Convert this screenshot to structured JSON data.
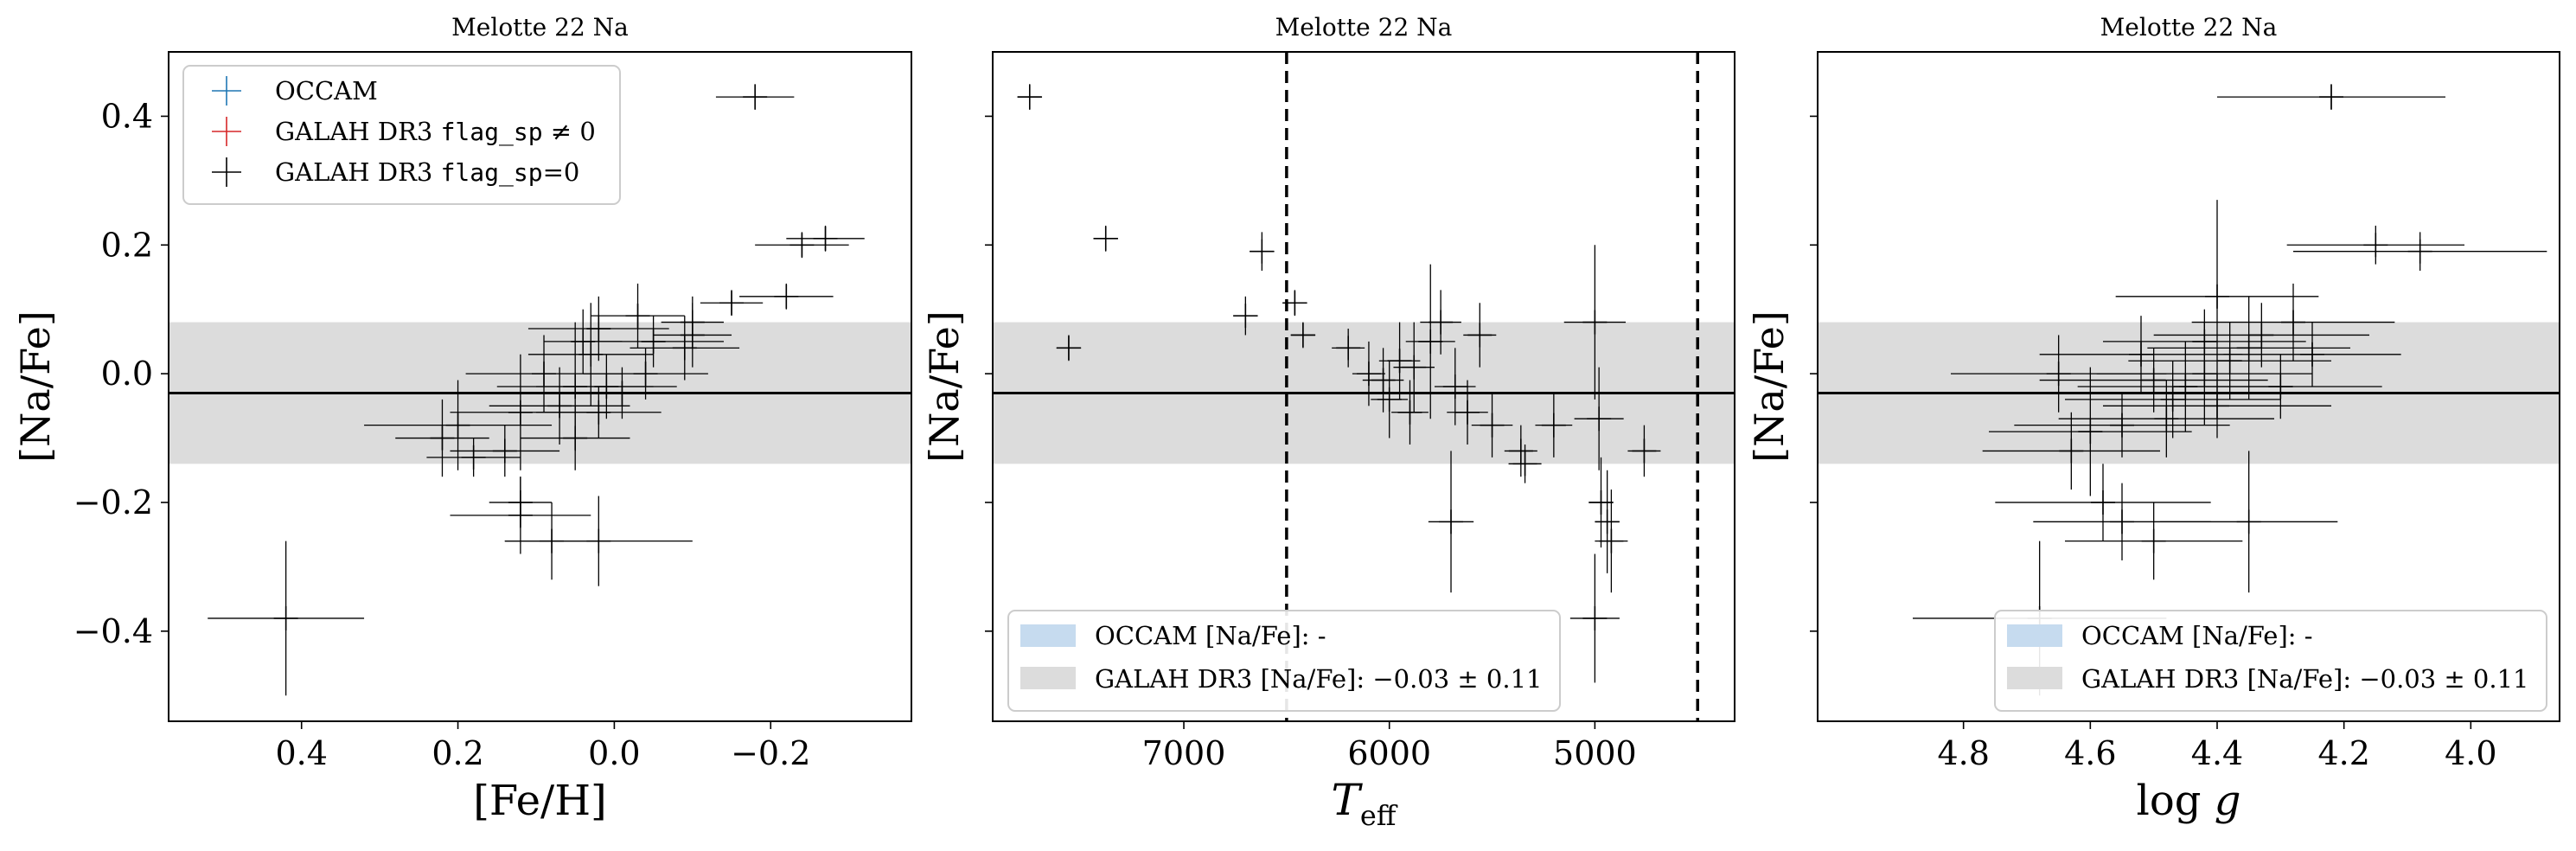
{
  "colors": {
    "occam": "#1f77b4",
    "galah_flagged": "#d62728",
    "galah_good": "#000000",
    "band_occam": "#c6dbef",
    "band_galah": "#dcdcdc"
  },
  "legend_top": {
    "items": [
      {
        "label": "OCCAM",
        "flag": "",
        "suffix": "",
        "color_key": "occam"
      },
      {
        "label": "GALAH DR3 ",
        "flag": "flag_sp",
        "suffix": " ≠ 0",
        "color_key": "galah_flagged"
      },
      {
        "label": "GALAH DR3 ",
        "flag": "flag_sp",
        "suffix": "=0",
        "color_key": "galah_good"
      }
    ]
  },
  "legend_bands": {
    "occam": "OCCAM [Na/Fe]: -",
    "galah": "GALAH DR3 [Na/Fe]: −0.03 ± 0.11"
  },
  "chart_data": [
    {
      "type": "scatter",
      "title": "Melotte 22 Na",
      "xlabel": "[Fe/H]",
      "ylabel": "[Na/Fe]",
      "xlim": [
        0.57,
        -0.38
      ],
      "ylim": [
        -0.54,
        0.5
      ],
      "xticks": [
        0.4,
        0.2,
        0.0,
        -0.2
      ],
      "xtick_labels": [
        "0.4",
        "0.2",
        "0.0",
        "−0.2"
      ],
      "yticks": [
        -0.4,
        -0.2,
        0.0,
        0.2,
        0.4
      ],
      "ytick_labels": [
        "−0.4",
        "−0.2",
        "0.0",
        "0.2",
        "0.4"
      ],
      "band": [
        -0.14,
        0.08
      ],
      "hline": -0.03,
      "legend": "top-left",
      "points": [
        {
          "x": 0.42,
          "y": -0.38,
          "xerr": 0.1,
          "yerr": 0.12
        },
        {
          "x": -0.18,
          "y": 0.43,
          "xerr": 0.05,
          "yerr": 0.02
        },
        {
          "x": -0.24,
          "y": 0.2,
          "xerr": 0.06,
          "yerr": 0.02
        },
        {
          "x": -0.27,
          "y": 0.21,
          "xerr": 0.05,
          "yerr": 0.02
        },
        {
          "x": -0.22,
          "y": 0.12,
          "xerr": 0.06,
          "yerr": 0.02
        },
        {
          "x": -0.15,
          "y": 0.11,
          "xerr": 0.04,
          "yerr": 0.02
        },
        {
          "x": -0.1,
          "y": 0.06,
          "xerr": 0.05,
          "yerr": 0.05
        },
        {
          "x": -0.09,
          "y": 0.04,
          "xerr": 0.07,
          "yerr": 0.05
        },
        {
          "x": -0.1,
          "y": 0.08,
          "xerr": 0.04,
          "yerr": 0.04
        },
        {
          "x": -0.05,
          "y": 0.05,
          "xerr": 0.09,
          "yerr": 0.04
        },
        {
          "x": 0.02,
          "y": 0.07,
          "xerr": 0.09,
          "yerr": 0.05
        },
        {
          "x": -0.04,
          "y": 0.0,
          "xerr": 0.08,
          "yerr": 0.04
        },
        {
          "x": 0.03,
          "y": 0.03,
          "xerr": 0.08,
          "yerr": 0.08
        },
        {
          "x": 0.01,
          "y": -0.02,
          "xerr": 0.09,
          "yerr": 0.05
        },
        {
          "x": -0.01,
          "y": -0.03,
          "xerr": 0.07,
          "yerr": 0.04
        },
        {
          "x": 0.05,
          "y": -0.02,
          "xerr": 0.1,
          "yerr": 0.1
        },
        {
          "x": 0.09,
          "y": 0.0,
          "xerr": 0.1,
          "yerr": 0.06
        },
        {
          "x": 0.02,
          "y": -0.06,
          "xerr": 0.08,
          "yerr": 0.04
        },
        {
          "x": 0.07,
          "y": -0.05,
          "xerr": 0.09,
          "yerr": 0.06
        },
        {
          "x": 0.12,
          "y": -0.06,
          "xerr": 0.09,
          "yerr": 0.09
        },
        {
          "x": 0.2,
          "y": -0.08,
          "xerr": 0.12,
          "yerr": 0.07
        },
        {
          "x": 0.18,
          "y": -0.13,
          "xerr": 0.06,
          "yerr": 0.03
        },
        {
          "x": 0.14,
          "y": -0.12,
          "xerr": 0.07,
          "yerr": 0.04
        },
        {
          "x": 0.22,
          "y": -0.1,
          "xerr": 0.06,
          "yerr": 0.06
        },
        {
          "x": 0.05,
          "y": -0.1,
          "xerr": 0.07,
          "yerr": 0.05
        },
        {
          "x": 0.12,
          "y": -0.22,
          "xerr": 0.09,
          "yerr": 0.06
        },
        {
          "x": 0.08,
          "y": -0.26,
          "xerr": 0.06,
          "yerr": 0.06
        },
        {
          "x": 0.02,
          "y": -0.26,
          "xerr": 0.12,
          "yerr": 0.07
        },
        {
          "x": 0.12,
          "y": -0.2,
          "xerr": 0.04,
          "yerr": 0.04
        },
        {
          "x": -0.03,
          "y": 0.09,
          "xerr": 0.06,
          "yerr": 0.05
        },
        {
          "x": 0.04,
          "y": 0.05,
          "xerr": 0.05,
          "yerr": 0.05
        }
      ]
    },
    {
      "type": "scatter",
      "title": "Melotte 22 Na",
      "xlabel": "T_eff",
      "ylabel": "[Na/Fe]",
      "xlim": [
        7930,
        4320
      ],
      "ylim": [
        -0.54,
        0.5
      ],
      "xticks": [
        7000,
        6000,
        5000
      ],
      "xtick_labels": [
        "7000",
        "6000",
        "5000"
      ],
      "yticks": [
        -0.4,
        -0.2,
        0.0,
        0.2,
        0.4
      ],
      "ytick_labels": [],
      "band": [
        -0.14,
        0.08
      ],
      "hline": -0.03,
      "vlines": [
        6500,
        4500
      ],
      "legend": "lower-left",
      "points": [
        {
          "x": 7750,
          "y": 0.43,
          "xerr": 60,
          "yerr": 0.02
        },
        {
          "x": 7380,
          "y": 0.21,
          "xerr": 60,
          "yerr": 0.02
        },
        {
          "x": 6620,
          "y": 0.19,
          "xerr": 60,
          "yerr": 0.03
        },
        {
          "x": 6700,
          "y": 0.09,
          "xerr": 60,
          "yerr": 0.03
        },
        {
          "x": 7560,
          "y": 0.04,
          "xerr": 60,
          "yerr": 0.02
        },
        {
          "x": 6460,
          "y": 0.11,
          "xerr": 60,
          "yerr": 0.02
        },
        {
          "x": 6420,
          "y": 0.06,
          "xerr": 60,
          "yerr": 0.02
        },
        {
          "x": 6200,
          "y": 0.04,
          "xerr": 80,
          "yerr": 0.03
        },
        {
          "x": 6100,
          "y": 0.0,
          "xerr": 80,
          "yerr": 0.05
        },
        {
          "x": 6030,
          "y": -0.01,
          "xerr": 100,
          "yerr": 0.05
        },
        {
          "x": 5950,
          "y": 0.02,
          "xerr": 100,
          "yerr": 0.06
        },
        {
          "x": 5880,
          "y": 0.01,
          "xerr": 100,
          "yerr": 0.07
        },
        {
          "x": 5800,
          "y": 0.05,
          "xerr": 120,
          "yerr": 0.12
        },
        {
          "x": 5750,
          "y": 0.08,
          "xerr": 100,
          "yerr": 0.05
        },
        {
          "x": 5680,
          "y": -0.02,
          "xerr": 100,
          "yerr": 0.06
        },
        {
          "x": 5620,
          "y": -0.06,
          "xerr": 100,
          "yerr": 0.05
        },
        {
          "x": 5560,
          "y": 0.06,
          "xerr": 80,
          "yerr": 0.05
        },
        {
          "x": 5500,
          "y": -0.08,
          "xerr": 100,
          "yerr": 0.05
        },
        {
          "x": 5700,
          "y": -0.23,
          "xerr": 110,
          "yerr": 0.11
        },
        {
          "x": 5360,
          "y": -0.12,
          "xerr": 80,
          "yerr": 0.04
        },
        {
          "x": 5340,
          "y": -0.14,
          "xerr": 80,
          "yerr": 0.03
        },
        {
          "x": 5200,
          "y": -0.08,
          "xerr": 90,
          "yerr": 0.05
        },
        {
          "x": 5000,
          "y": 0.08,
          "xerr": 150,
          "yerr": 0.12
        },
        {
          "x": 4980,
          "y": -0.07,
          "xerr": 120,
          "yerr": 0.08
        },
        {
          "x": 5000,
          "y": -0.38,
          "xerr": 120,
          "yerr": 0.1
        },
        {
          "x": 4970,
          "y": -0.2,
          "xerr": 60,
          "yerr": 0.07
        },
        {
          "x": 4940,
          "y": -0.23,
          "xerr": 60,
          "yerr": 0.08
        },
        {
          "x": 4920,
          "y": -0.26,
          "xerr": 80,
          "yerr": 0.08
        },
        {
          "x": 4760,
          "y": -0.12,
          "xerr": 80,
          "yerr": 0.04
        },
        {
          "x": 6000,
          "y": -0.04,
          "xerr": 90,
          "yerr": 0.06
        },
        {
          "x": 5900,
          "y": -0.06,
          "xerr": 90,
          "yerr": 0.05
        }
      ]
    },
    {
      "type": "scatter",
      "title": "Melotte 22 Na",
      "xlabel": "log g",
      "ylabel": "[Na/Fe]",
      "xlim": [
        5.03,
        3.86
      ],
      "ylim": [
        -0.54,
        0.5
      ],
      "xticks": [
        4.8,
        4.6,
        4.4,
        4.2,
        4.0
      ],
      "xtick_labels": [
        "4.8",
        "4.6",
        "4.4",
        "4.2",
        "4.0"
      ],
      "yticks": [
        -0.4,
        -0.2,
        0.0,
        0.2,
        0.4
      ],
      "ytick_labels": [],
      "band": [
        -0.14,
        0.08
      ],
      "hline": -0.03,
      "legend": "lower-right",
      "points": [
        {
          "x": 4.22,
          "y": 0.43,
          "xerr": 0.18,
          "yerr": 0.02
        },
        {
          "x": 4.15,
          "y": 0.2,
          "xerr": 0.14,
          "yerr": 0.03
        },
        {
          "x": 4.08,
          "y": 0.19,
          "xerr": 0.2,
          "yerr": 0.03
        },
        {
          "x": 4.4,
          "y": 0.12,
          "xerr": 0.16,
          "yerr": 0.15
        },
        {
          "x": 4.28,
          "y": 0.08,
          "xerr": 0.16,
          "yerr": 0.06
        },
        {
          "x": 4.33,
          "y": 0.06,
          "xerr": 0.17,
          "yerr": 0.05
        },
        {
          "x": 4.35,
          "y": 0.04,
          "xerr": 0.16,
          "yerr": 0.08
        },
        {
          "x": 4.38,
          "y": 0.02,
          "xerr": 0.16,
          "yerr": 0.06
        },
        {
          "x": 4.42,
          "y": 0.0,
          "xerr": 0.17,
          "yerr": 0.08
        },
        {
          "x": 4.45,
          "y": -0.02,
          "xerr": 0.17,
          "yerr": 0.07
        },
        {
          "x": 4.47,
          "y": -0.04,
          "xerr": 0.17,
          "yerr": 0.06
        },
        {
          "x": 4.5,
          "y": -0.01,
          "xerr": 0.18,
          "yerr": 0.05
        },
        {
          "x": 4.4,
          "y": -0.05,
          "xerr": 0.18,
          "yerr": 0.05
        },
        {
          "x": 4.48,
          "y": -0.07,
          "xerr": 0.17,
          "yerr": 0.06
        },
        {
          "x": 4.55,
          "y": -0.08,
          "xerr": 0.17,
          "yerr": 0.05
        },
        {
          "x": 4.6,
          "y": -0.09,
          "xerr": 0.16,
          "yerr": 0.1
        },
        {
          "x": 4.63,
          "y": -0.12,
          "xerr": 0.14,
          "yerr": 0.06
        },
        {
          "x": 4.58,
          "y": -0.2,
          "xerr": 0.17,
          "yerr": 0.06
        },
        {
          "x": 4.55,
          "y": -0.23,
          "xerr": 0.14,
          "yerr": 0.06
        },
        {
          "x": 4.5,
          "y": -0.26,
          "xerr": 0.14,
          "yerr": 0.06
        },
        {
          "x": 4.35,
          "y": -0.23,
          "xerr": 0.14,
          "yerr": 0.11
        },
        {
          "x": 4.68,
          "y": -0.38,
          "xerr": 0.2,
          "yerr": 0.12
        },
        {
          "x": 4.25,
          "y": 0.03,
          "xerr": 0.14,
          "yerr": 0.05
        },
        {
          "x": 4.3,
          "y": -0.02,
          "xerr": 0.16,
          "yerr": 0.05
        },
        {
          "x": 4.42,
          "y": 0.05,
          "xerr": 0.16,
          "yerr": 0.05
        },
        {
          "x": 4.52,
          "y": 0.03,
          "xerr": 0.16,
          "yerr": 0.06
        },
        {
          "x": 4.65,
          "y": 0.0,
          "xerr": 0.17,
          "yerr": 0.06
        }
      ]
    }
  ]
}
